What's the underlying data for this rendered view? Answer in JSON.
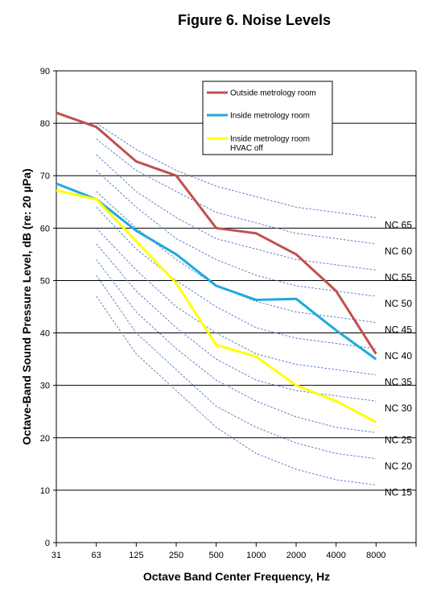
{
  "chart_data": {
    "type": "line",
    "title": "Figure 6. Noise Levels",
    "xlabel": "Octave Band Center Frequency, Hz",
    "ylabel": "Octave-Band Sound Pressure Level, dB (re: 20 µPa)",
    "ylim": [
      0,
      90
    ],
    "yticks": [
      0,
      10,
      20,
      30,
      40,
      50,
      60,
      70,
      80,
      90
    ],
    "categories": [
      "31",
      "63",
      "125",
      "250",
      "500",
      "1000",
      "2000",
      "4000",
      "8000"
    ],
    "grid": "horizontal",
    "legend_position": "top-right",
    "series": [
      {
        "name": "Outside metrology room",
        "color": "#c0504d",
        "width": 3,
        "values": [
          82,
          79.3,
          72.7,
          70,
          60,
          59,
          55,
          48,
          36
        ]
      },
      {
        "name": "Inside metrology room",
        "color": "#1ea9dc",
        "width": 3,
        "values": [
          68.5,
          65.5,
          59.5,
          55,
          49,
          46.3,
          46.5,
          40.5,
          35
        ]
      },
      {
        "name_lines": [
          "Inside metrology room",
          "HVAC off"
        ],
        "name": "Inside metrology room HVAC off",
        "color": "#ffff00",
        "width": 3,
        "values": [
          67.2,
          65.5,
          57.5,
          49.5,
          37.7,
          35.5,
          30,
          27,
          23
        ]
      }
    ],
    "nc_curves": [
      {
        "label": "NC 65",
        "values": [
          null,
          80,
          75,
          71,
          68,
          66,
          64,
          63,
          62
        ]
      },
      {
        "label": "NC 60",
        "values": [
          null,
          77,
          71,
          67,
          63,
          61,
          59,
          58,
          57
        ]
      },
      {
        "label": "NC 55",
        "values": [
          null,
          74,
          67,
          62,
          58,
          56,
          54,
          53,
          52
        ]
      },
      {
        "label": "NC 50",
        "values": [
          null,
          71,
          64,
          58,
          54,
          51,
          49,
          48,
          47
        ]
      },
      {
        "label": "NC 45",
        "values": [
          null,
          67,
          60,
          54,
          49,
          46,
          44,
          43,
          42
        ]
      },
      {
        "label": "NC 40",
        "values": [
          null,
          64,
          56,
          50,
          45,
          41,
          39,
          38,
          37
        ]
      },
      {
        "label": "NC 35",
        "values": [
          null,
          60,
          52,
          45,
          40,
          36,
          34,
          33,
          32
        ]
      },
      {
        "label": "NC 30",
        "values": [
          null,
          57,
          48,
          41,
          35,
          31,
          29,
          28,
          27
        ]
      },
      {
        "label": "NC 25",
        "values": [
          null,
          54,
          44,
          37,
          31,
          27,
          24,
          22,
          21
        ]
      },
      {
        "label": "NC 20",
        "values": [
          null,
          51,
          40,
          33,
          26,
          22,
          19,
          17,
          16
        ]
      },
      {
        "label": "NC 15",
        "values": [
          null,
          47,
          36,
          29,
          22,
          17,
          14,
          12,
          11
        ]
      }
    ],
    "nc_color": "#4472c4"
  }
}
